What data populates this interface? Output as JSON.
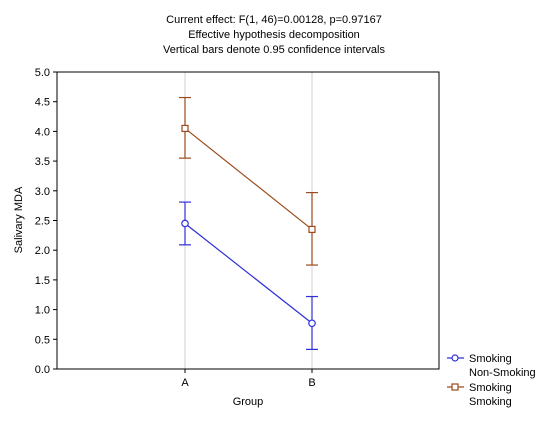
{
  "chart_data": {
    "type": "line",
    "title_lines": [
      "Current effect: F(1, 46)=0.00128, p=0.97167",
      "Effective hypothesis decomposition",
      "Vertical bars denote 0.95 confidence intervals"
    ],
    "xlabel": "Group",
    "ylabel": "Salivary MDA",
    "categories": [
      "A",
      "B"
    ],
    "ylim": [
      0,
      5
    ],
    "yticks": [
      "0.0",
      "0.5",
      "1.0",
      "1.5",
      "2.0",
      "2.5",
      "3.0",
      "3.5",
      "4.0",
      "4.5",
      "5.0"
    ],
    "grid": "vertical at categories",
    "legend_position": "bottom-right, outside plot",
    "legend_title": "Smoking",
    "series": [
      {
        "name": "Non-Smoking",
        "color": "#2f2fd8",
        "marker": "circle",
        "values": [
          2.45,
          0.77
        ],
        "ci_low": [
          2.09,
          0.33
        ],
        "ci_high": [
          2.81,
          1.22
        ]
      },
      {
        "name": "Smoking",
        "color": "#9a4a1a",
        "marker": "square",
        "values": [
          4.05,
          2.35
        ],
        "ci_low": [
          3.55,
          1.75
        ],
        "ci_high": [
          4.57,
          2.97
        ]
      }
    ]
  }
}
